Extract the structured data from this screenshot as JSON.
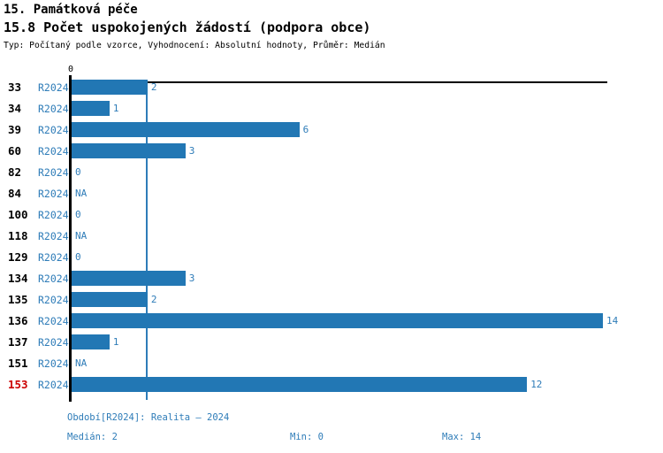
{
  "header": {
    "section_title": "15. Památková péče",
    "indicator_title": "15.8 Počet uspokojených žádostí (podpora obce)",
    "meta": "Typ: Počítaný podle vzorce, Vyhodnocení: Absolutní hodnoty, Průměr: Medián"
  },
  "colors": {
    "bar_blue": "#2277b4",
    "text_blue": "#2e7cb8",
    "highlight_red": "#cc0000",
    "axis_black": "#000000"
  },
  "chart_data": {
    "type": "bar",
    "orientation": "horizontal",
    "title": "15.8 Počet uspokojených žádostí (podpora obce)",
    "period_label": "R2024",
    "categories": [
      "33",
      "34",
      "39",
      "60",
      "82",
      "84",
      "100",
      "118",
      "129",
      "134",
      "135",
      "136",
      "137",
      "151",
      "153"
    ],
    "values": [
      2,
      1,
      6,
      3,
      0,
      null,
      0,
      null,
      0,
      3,
      2,
      14,
      1,
      null,
      12
    ],
    "display_values": [
      "2",
      "1",
      "6",
      "3",
      "0",
      "NA",
      "0",
      "NA",
      "0",
      "3",
      "2",
      "14",
      "1",
      "NA",
      "12"
    ],
    "highlighted_categories": [
      "153"
    ],
    "x_axis": {
      "min": 0,
      "tick_labels": [
        "0"
      ],
      "max_data_value": 14
    },
    "median_reference_line": 2,
    "grid": false,
    "legend": false
  },
  "axis": {
    "zero_tick": "0"
  },
  "footer": {
    "period": "Období[R2024]: Realita – 2024",
    "median": "Medián: 2",
    "min": "Min: 0",
    "max": "Max: 14"
  }
}
